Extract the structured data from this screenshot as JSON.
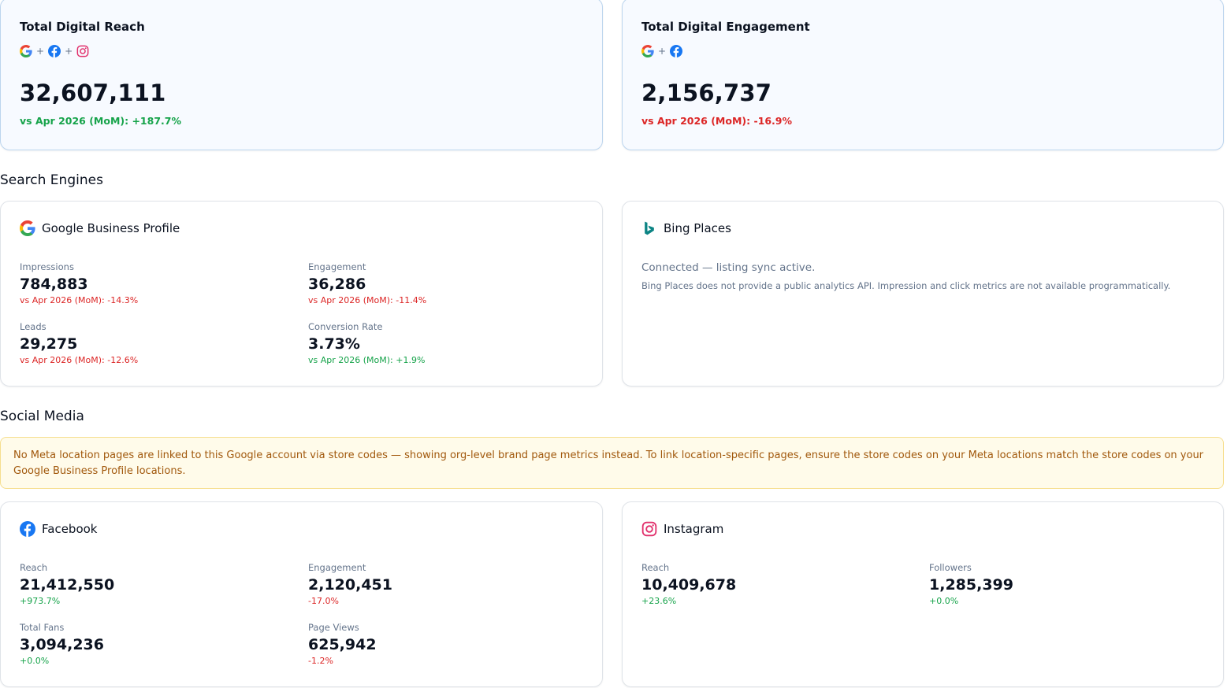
{
  "summary": {
    "reach": {
      "title": "Total Digital Reach",
      "value": "32,607,111",
      "delta": "vs Apr 2026 (MoM): +187.7%",
      "sources": [
        "google-icon",
        "facebook-icon",
        "instagram-icon"
      ],
      "separator": "+"
    },
    "engagement": {
      "title": "Total Digital Engagement",
      "value": "2,156,737",
      "delta": "vs Apr 2026 (MoM): -16.9%",
      "sources": [
        "google-icon",
        "facebook-icon"
      ],
      "separator": "+"
    }
  },
  "sections": {
    "search": "Search Engines",
    "social": "Social Media"
  },
  "google": {
    "title": "Google Business Profile",
    "metrics": [
      {
        "label": "Impressions",
        "value": "784,883",
        "delta": "vs Apr 2026 (MoM): -14.3%"
      },
      {
        "label": "Engagement",
        "value": "36,286",
        "delta": "vs Apr 2026 (MoM): -11.4%"
      },
      {
        "label": "Leads",
        "value": "29,275",
        "delta": "vs Apr 2026 (MoM): -12.6%"
      },
      {
        "label": "Conversion Rate",
        "value": "3.73%",
        "delta": "vs Apr 2026 (MoM): +1.9%"
      }
    ]
  },
  "bing": {
    "title": "Bing Places",
    "status": "Connected — listing sync active.",
    "note": "Bing Places does not provide a public analytics API. Impression and click metrics are not available programmatically."
  },
  "warning": "No Meta location pages are linked to this Google account via store codes — showing org-level brand page metrics instead. To link location-specific pages, ensure the store codes on your Meta locations match the store codes on your Google Business Profile locations.",
  "facebook": {
    "title": "Facebook",
    "metrics": [
      {
        "label": "Reach",
        "value": "21,412,550",
        "delta": "+973.7%"
      },
      {
        "label": "Engagement",
        "value": "2,120,451",
        "delta": "-17.0%"
      },
      {
        "label": "Total Fans",
        "value": "3,094,236",
        "delta": "+0.0%"
      },
      {
        "label": "Page Views",
        "value": "625,942",
        "delta": "-1.2%"
      }
    ]
  },
  "instagram": {
    "title": "Instagram",
    "metrics": [
      {
        "label": "Reach",
        "value": "10,409,678",
        "delta": "+23.6%"
      },
      {
        "label": "Followers",
        "value": "1,285,399",
        "delta": "+0.0%"
      }
    ]
  },
  "colors": {
    "positive": "#16a34a",
    "negative": "#dc2626",
    "google_blue": "#4285F4",
    "facebook_blue": "#1877F2",
    "instagram_pink": "#E1306C",
    "bing_teal": "#0C8484"
  }
}
